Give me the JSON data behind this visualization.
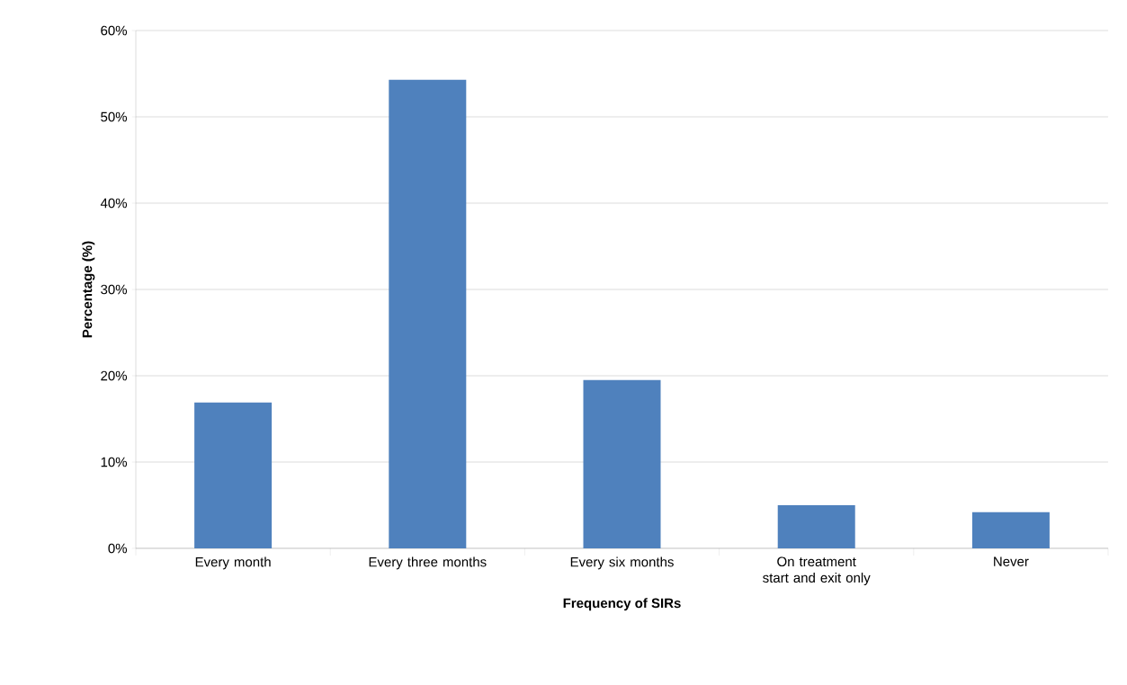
{
  "chart_data": {
    "type": "bar",
    "xlabel": "Frequency of SIRs",
    "ylabel": "Percentage (%)",
    "categories": [
      "Every month",
      "Every three months",
      "Every six months",
      "On treatment start and exit only",
      "Never"
    ],
    "values": [
      16.9,
      54.3,
      19.5,
      5.0,
      4.2
    ],
    "color": "#4f81bd",
    "ylim": [
      0,
      60
    ],
    "yticks": [
      {
        "value": 0,
        "label": "0%"
      },
      {
        "value": 10,
        "label": "10%"
      },
      {
        "value": 20,
        "label": "20%"
      },
      {
        "value": 30,
        "label": "30%"
      },
      {
        "value": 40,
        "label": "40%"
      },
      {
        "value": 50,
        "label": "50%"
      },
      {
        "value": 60,
        "label": "60%"
      }
    ],
    "grid": "y"
  }
}
